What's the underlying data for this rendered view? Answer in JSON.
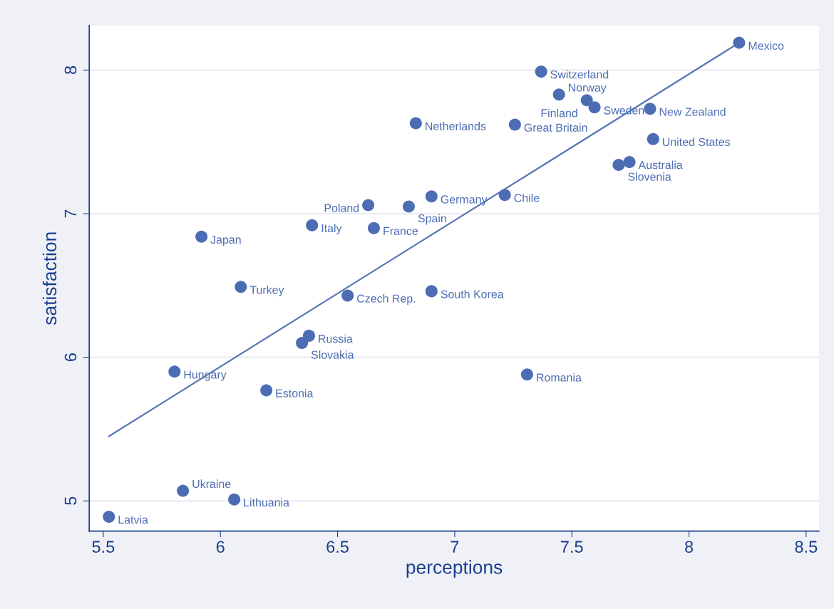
{
  "chart_data": {
    "type": "scatter",
    "xlabel": "perceptions",
    "ylabel": "satisfaction",
    "xlim": [
      5.44,
      8.555
    ],
    "ylim": [
      4.79,
      8.31
    ],
    "xticks": [
      5.5,
      6,
      6.5,
      7,
      7.5,
      8,
      8.5
    ],
    "yticks": [
      5,
      6,
      7,
      8
    ],
    "grid": "y",
    "series": [
      {
        "color": "#4c6db3",
        "marker": "circle",
        "x": [
          8.214,
          7.369,
          7.445,
          7.564,
          7.597,
          7.834,
          6.834,
          7.257,
          7.847,
          7.746,
          7.7,
          6.901,
          7.214,
          6.631,
          6.804,
          5.919,
          6.391,
          6.655,
          6.087,
          6.543,
          6.901,
          6.378,
          6.348,
          5.804,
          7.309,
          6.196,
          5.84,
          6.059,
          5.524
        ],
        "values": [
          8.19,
          7.99,
          7.83,
          7.79,
          7.74,
          7.73,
          7.63,
          7.62,
          7.52,
          7.36,
          7.34,
          7.12,
          7.13,
          7.06,
          7.05,
          6.84,
          6.92,
          6.9,
          6.49,
          6.43,
          6.46,
          6.15,
          6.1,
          5.9,
          5.88,
          5.77,
          5.07,
          5.01,
          4.89
        ],
        "value_labels": [
          "Mexico",
          "Switzerland",
          "Norway",
          "Finland",
          "Sweden",
          "New Zealand",
          "Netherlands",
          "Great Britain",
          "United States",
          "Australia",
          "Slovenia",
          "Germany",
          "Chile",
          "Poland",
          "Spain",
          "Japan",
          "Italy",
          "France",
          "Turkey",
          "Czech Rep.",
          "South Korea",
          "Russia",
          "Slovakia",
          "Hungary",
          "Romania",
          "Estonia",
          "Ukraine",
          "Lithuania",
          "Latvia"
        ]
      },
      {
        "type": "line",
        "color": "#5a76b5",
        "x": [
          5.524,
          8.214
        ],
        "values": [
          5.45,
          8.19
        ]
      }
    ]
  }
}
